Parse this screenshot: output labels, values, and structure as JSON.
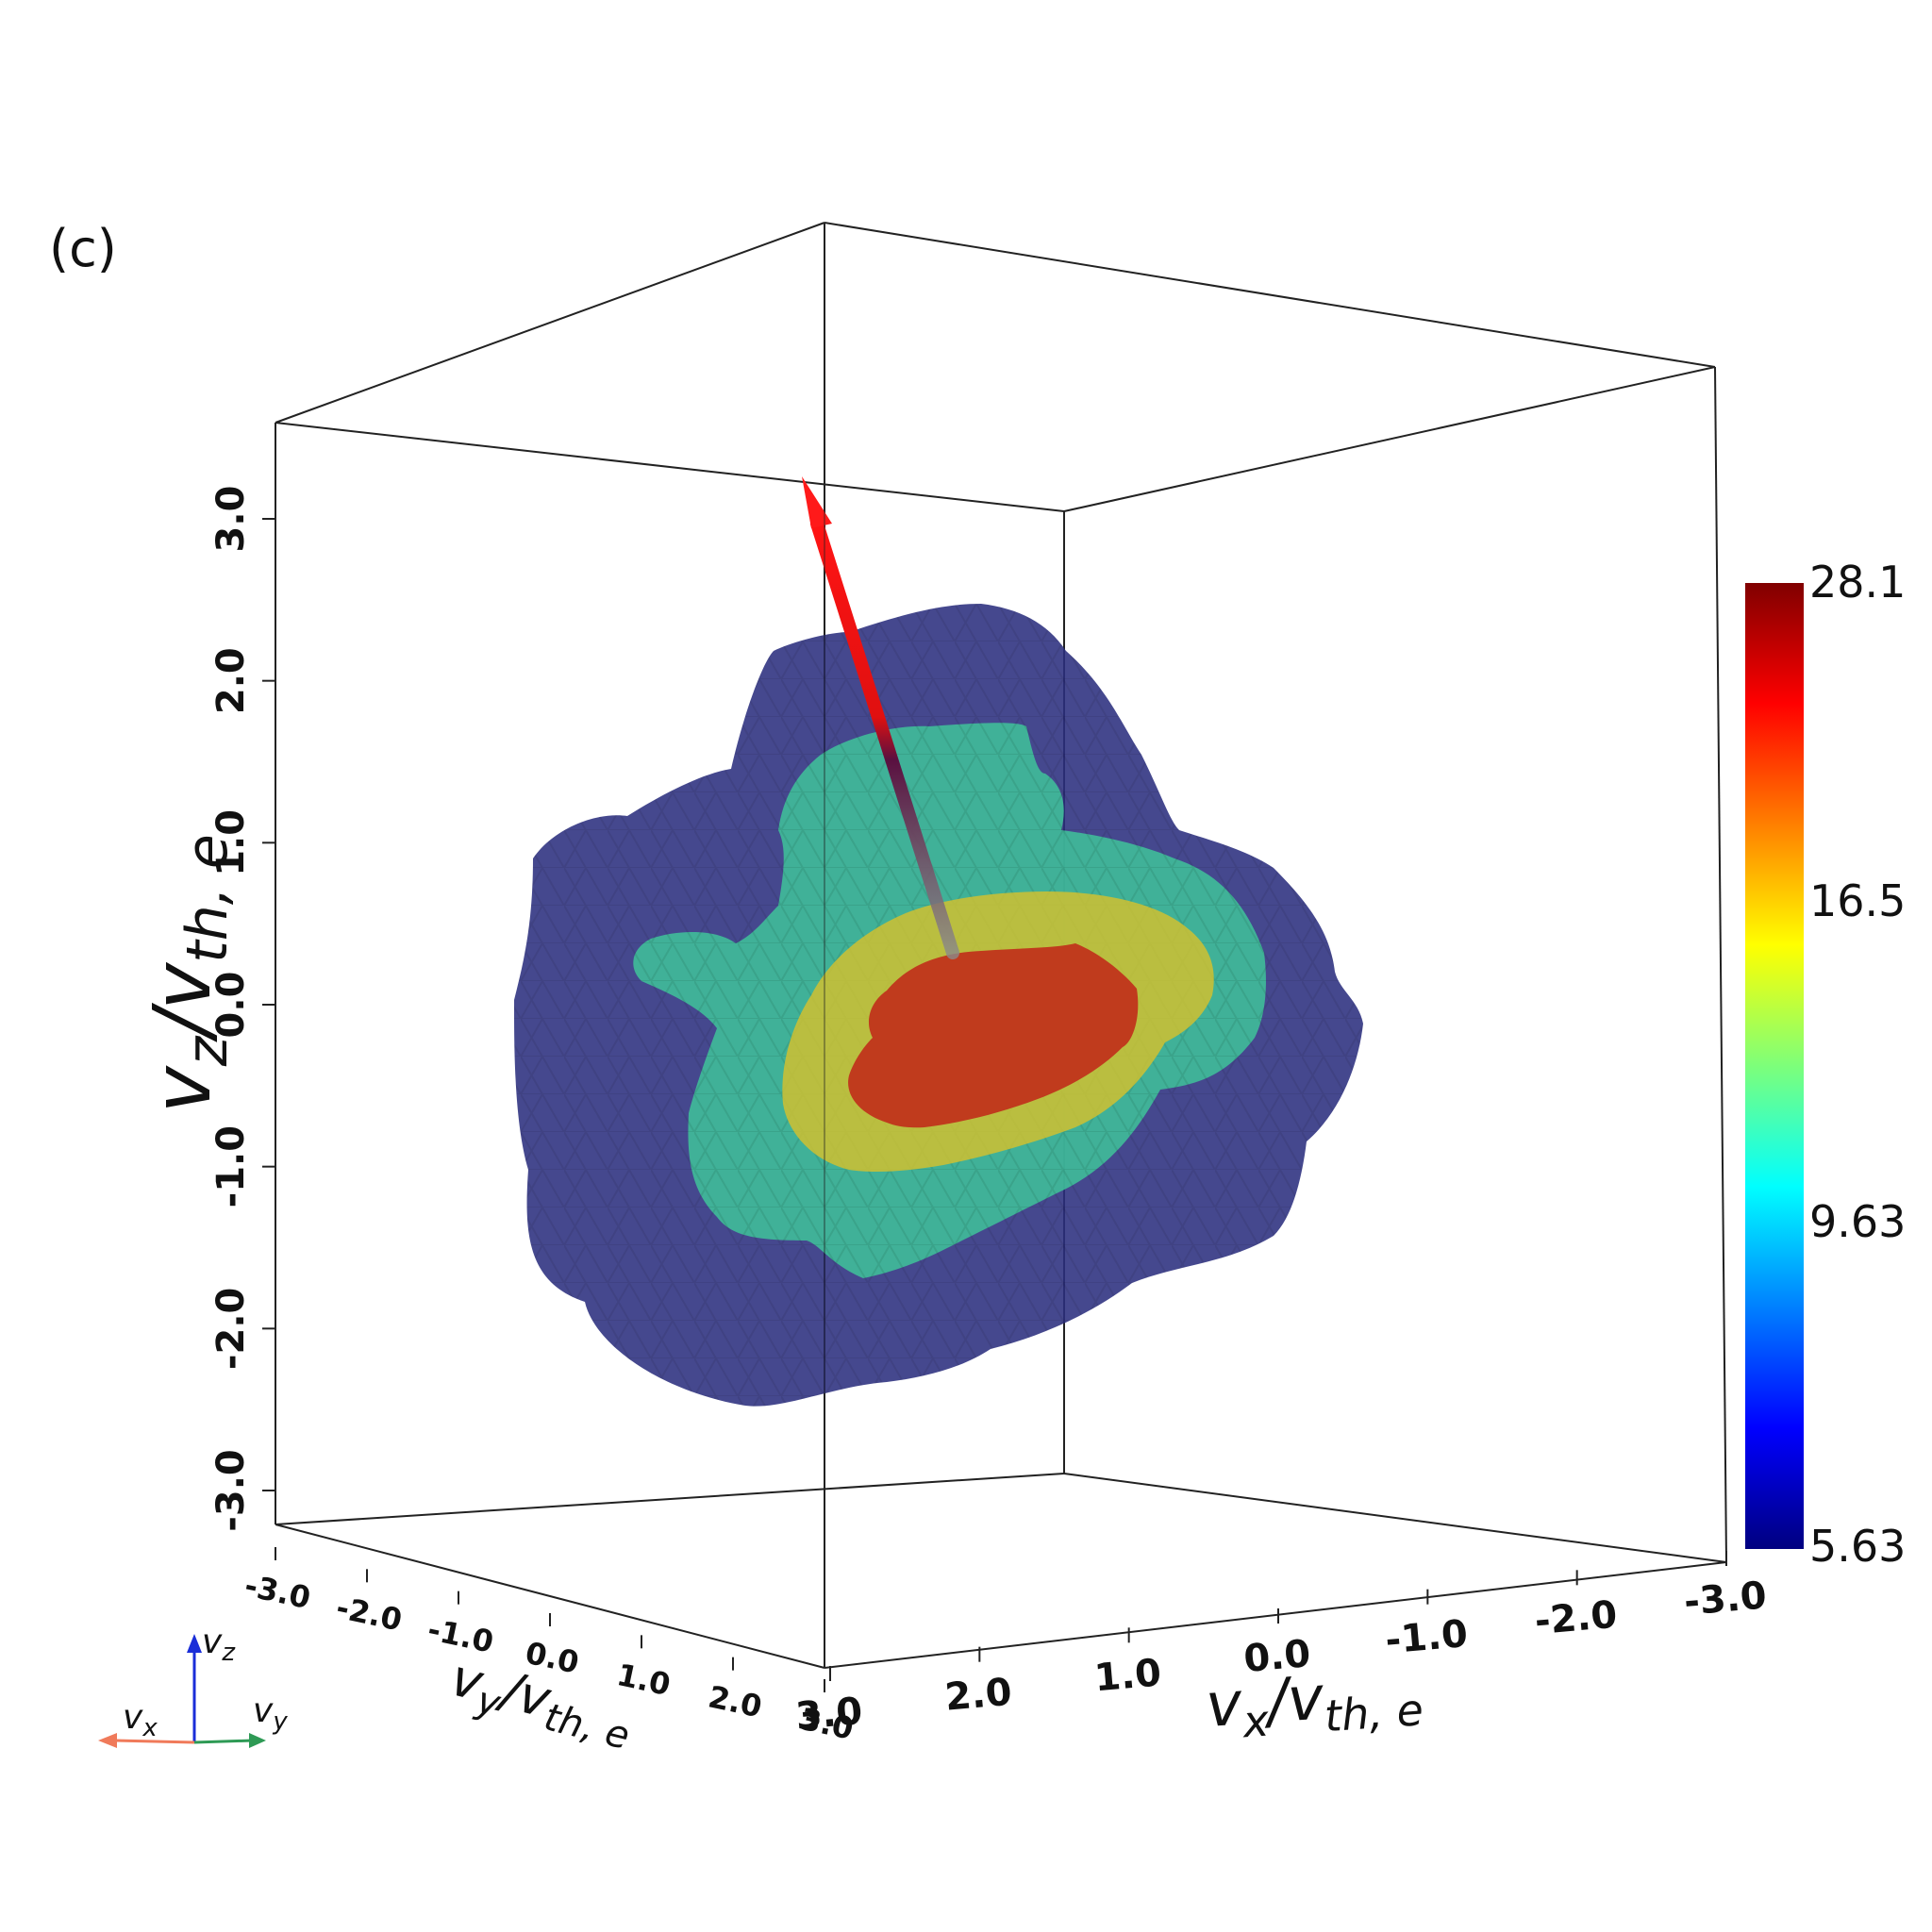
{
  "panel_label": "(c)",
  "chart_data": {
    "type": "isosurface-3d",
    "axes": {
      "z": {
        "label": {
          "main": "v",
          "sub": "z",
          "rest": "/v",
          "rest_sub": "th, e"
        },
        "ticks": [
          "3.0",
          "2.0",
          "1.0",
          "0.0",
          "-1.0",
          "-2.0",
          "-3.0"
        ],
        "range": [
          -3.0,
          3.0
        ]
      },
      "y": {
        "label": {
          "main": "v",
          "sub": "y",
          "rest": "/v",
          "rest_sub": "th, e"
        },
        "ticks": [
          "-3.0",
          "-2.0",
          "-1.0",
          "0.0",
          "1.0",
          "2.0",
          "3.0"
        ],
        "range": [
          -3.0,
          3.0
        ]
      },
      "x": {
        "label": {
          "main": "v",
          "sub": "x",
          "rest": "/v",
          "rest_sub": "th, e"
        },
        "ticks": [
          "3.0",
          "2.0",
          "1.0",
          "0.0",
          "-1.0",
          "-2.0",
          "-3.0"
        ],
        "range": [
          3.0,
          -3.0
        ]
      }
    },
    "isosurfaces": [
      {
        "level": "outer",
        "color": "#2b2f7e"
      },
      {
        "level": "middle",
        "color": "#3fc49a"
      },
      {
        "level": "inner",
        "color": "#d8c22a"
      },
      {
        "level": "core",
        "color": "#c0301a"
      }
    ],
    "colorbar": {
      "ticks": [
        "28.1",
        "16.5",
        "9.63",
        "5.63"
      ],
      "min": 5.63,
      "max": 28.1,
      "colormap": "jet"
    },
    "arrow": {
      "color": "#ff1a1a"
    },
    "orientation_axes": [
      {
        "label_main": "v",
        "label_sub": "z",
        "color": "#1a2ed8"
      },
      {
        "label_main": "v",
        "label_sub": "x",
        "color": "#f07a5a"
      },
      {
        "label_main": "v",
        "label_sub": "y",
        "color": "#2e9a55"
      }
    ]
  }
}
